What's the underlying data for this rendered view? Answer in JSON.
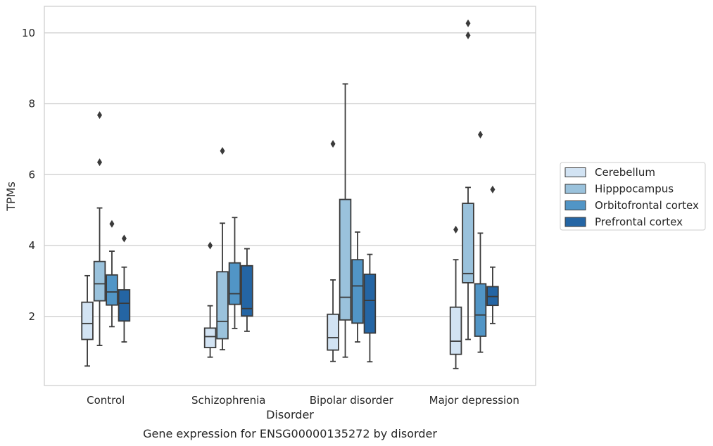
{
  "chart_data": {
    "type": "box",
    "caption": "Gene expression for ENSG00000135272 by disorder",
    "xlabel": "Disorder",
    "ylabel": "TPMs",
    "ylim": [
      0.05,
      10.75
    ],
    "yticks": [
      2,
      4,
      6,
      8,
      10
    ],
    "grid": "horizontal",
    "legend_position": "right",
    "categories": [
      "Control",
      "Schizophrenia",
      "Bipolar disorder",
      "Major depression"
    ],
    "series": [
      {
        "name": "Cerebellum",
        "color": "#d2e3f3",
        "boxes": [
          {
            "whislo": 0.6,
            "q1": 1.35,
            "med": 1.8,
            "q3": 2.4,
            "whishi": 3.15,
            "fliers": []
          },
          {
            "whislo": 0.85,
            "q1": 1.12,
            "med": 1.43,
            "q3": 1.67,
            "whishi": 2.3,
            "fliers": [
              4.0
            ]
          },
          {
            "whislo": 0.73,
            "q1": 1.05,
            "med": 1.4,
            "q3": 2.06,
            "whishi": 3.03,
            "fliers": [
              6.87
            ]
          },
          {
            "whislo": 0.53,
            "q1": 0.93,
            "med": 1.3,
            "q3": 2.26,
            "whishi": 3.6,
            "fliers": [
              4.45
            ]
          }
        ]
      },
      {
        "name": "Hipppocampus",
        "color": "#9ac2dc",
        "boxes": [
          {
            "whislo": 1.18,
            "q1": 2.44,
            "med": 2.92,
            "q3": 3.55,
            "whishi": 5.06,
            "fliers": [
              6.35,
              7.68
            ]
          },
          {
            "whislo": 1.06,
            "q1": 1.37,
            "med": 1.86,
            "q3": 3.26,
            "whishi": 4.63,
            "fliers": [
              6.67
            ]
          },
          {
            "whislo": 0.85,
            "q1": 1.9,
            "med": 2.54,
            "q3": 5.3,
            "whishi": 8.56,
            "fliers": []
          },
          {
            "whislo": 1.35,
            "q1": 2.95,
            "med": 3.21,
            "q3": 5.19,
            "whishi": 5.64,
            "fliers": [
              9.93,
              10.27
            ]
          }
        ]
      },
      {
        "name": "Orbitofrontal cortex",
        "color": "#5195c6",
        "boxes": [
          {
            "whislo": 1.71,
            "q1": 2.32,
            "med": 2.69,
            "q3": 3.17,
            "whishi": 3.84,
            "fliers": [
              4.61
            ]
          },
          {
            "whislo": 1.66,
            "q1": 2.34,
            "med": 2.64,
            "q3": 3.51,
            "whishi": 4.79,
            "fliers": []
          },
          {
            "whislo": 1.28,
            "q1": 1.81,
            "med": 2.86,
            "q3": 3.6,
            "whishi": 4.38,
            "fliers": []
          },
          {
            "whislo": 0.99,
            "q1": 1.44,
            "med": 2.04,
            "q3": 2.92,
            "whishi": 4.35,
            "fliers": [
              7.13
            ]
          }
        ]
      },
      {
        "name": "Prefrontal cortex",
        "color": "#2465a4",
        "boxes": [
          {
            "whislo": 1.28,
            "q1": 1.87,
            "med": 2.37,
            "q3": 2.75,
            "whishi": 3.39,
            "fliers": [
              4.2
            ]
          },
          {
            "whislo": 1.58,
            "q1": 2.01,
            "med": 2.22,
            "q3": 3.43,
            "whishi": 3.91,
            "fliers": []
          },
          {
            "whislo": 0.72,
            "q1": 1.53,
            "med": 2.45,
            "q3": 3.19,
            "whishi": 3.75,
            "fliers": []
          },
          {
            "whislo": 1.8,
            "q1": 2.31,
            "med": 2.56,
            "q3": 2.84,
            "whishi": 3.39,
            "fliers": [
              5.58
            ]
          }
        ]
      }
    ]
  }
}
